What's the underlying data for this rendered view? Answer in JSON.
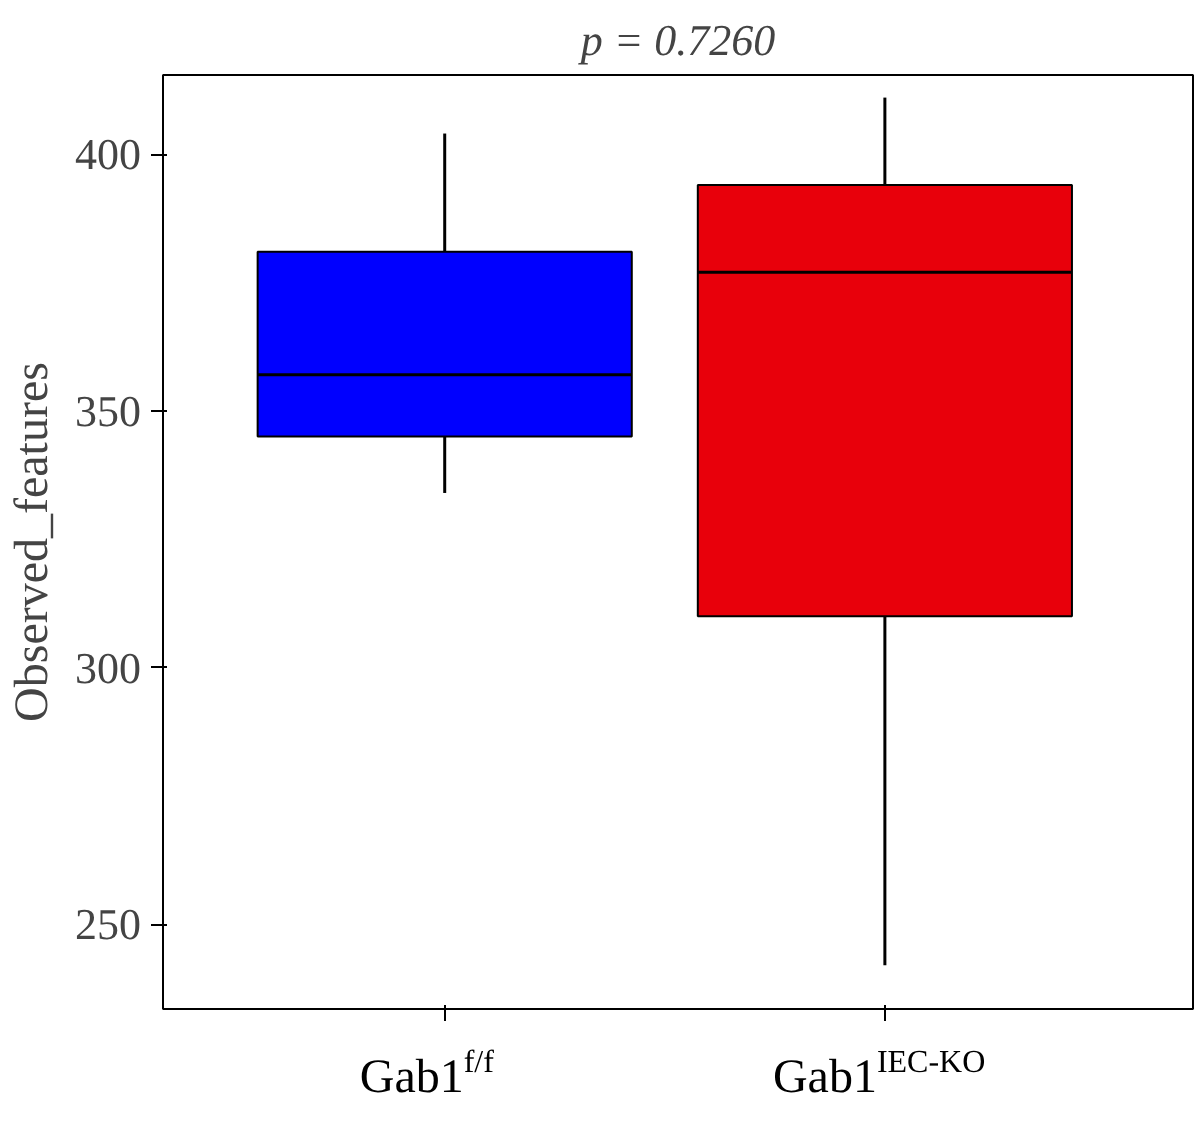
{
  "chart_data": {
    "type": "box",
    "title": "p = 0.7260",
    "ylabel": "Observed_features",
    "categories": [
      "Gab1$^{f/f}$",
      "Gab1$^{IEC-KO}$"
    ],
    "colors": [
      "#0000ff",
      "#e8000b"
    ],
    "boxes": [
      {
        "low": 334,
        "q1": 345,
        "median": 357,
        "q3": 381,
        "high": 404
      },
      {
        "low": 242,
        "q1": 310,
        "median": 377,
        "q3": 394,
        "high": 411
      }
    ],
    "ylim": [
      233.5,
      415.4
    ],
    "yticks": [
      250,
      300,
      350,
      400
    ],
    "grid": false
  }
}
